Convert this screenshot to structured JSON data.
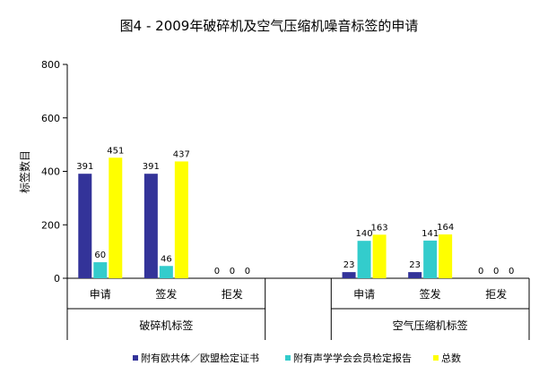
{
  "chart_data": {
    "type": "bar",
    "title": "图4 - 2009年破碎机及空气压缩机噪音标签的申请",
    "ylabel": "标签数目",
    "xlabel": "",
    "ylim": [
      0,
      800
    ],
    "yticks": [
      "0",
      "200",
      "400",
      "600",
      "800"
    ],
    "grid": false,
    "legend_position": "bottom",
    "groups": [
      {
        "label": "破碎机标签",
        "categories": [
          "申请",
          "签发",
          "拒发"
        ]
      },
      {
        "label": "空气压缩机标签",
        "categories": [
          "申请",
          "签发",
          "拒发"
        ]
      }
    ],
    "series": [
      {
        "name": "附有欧共体／欧盟检定证书",
        "color": "#333399",
        "values": [
          [
            391,
            391,
            0
          ],
          [
            23,
            23,
            0
          ]
        ]
      },
      {
        "name": "附有声学学会会员检定报告",
        "color": "#33CCCC",
        "values": [
          [
            60,
            46,
            0
          ],
          [
            140,
            141,
            0
          ]
        ]
      },
      {
        "name": "总数",
        "color": "#FFFF00",
        "values": [
          [
            451,
            437,
            0
          ],
          [
            163,
            164,
            0
          ]
        ]
      }
    ]
  }
}
